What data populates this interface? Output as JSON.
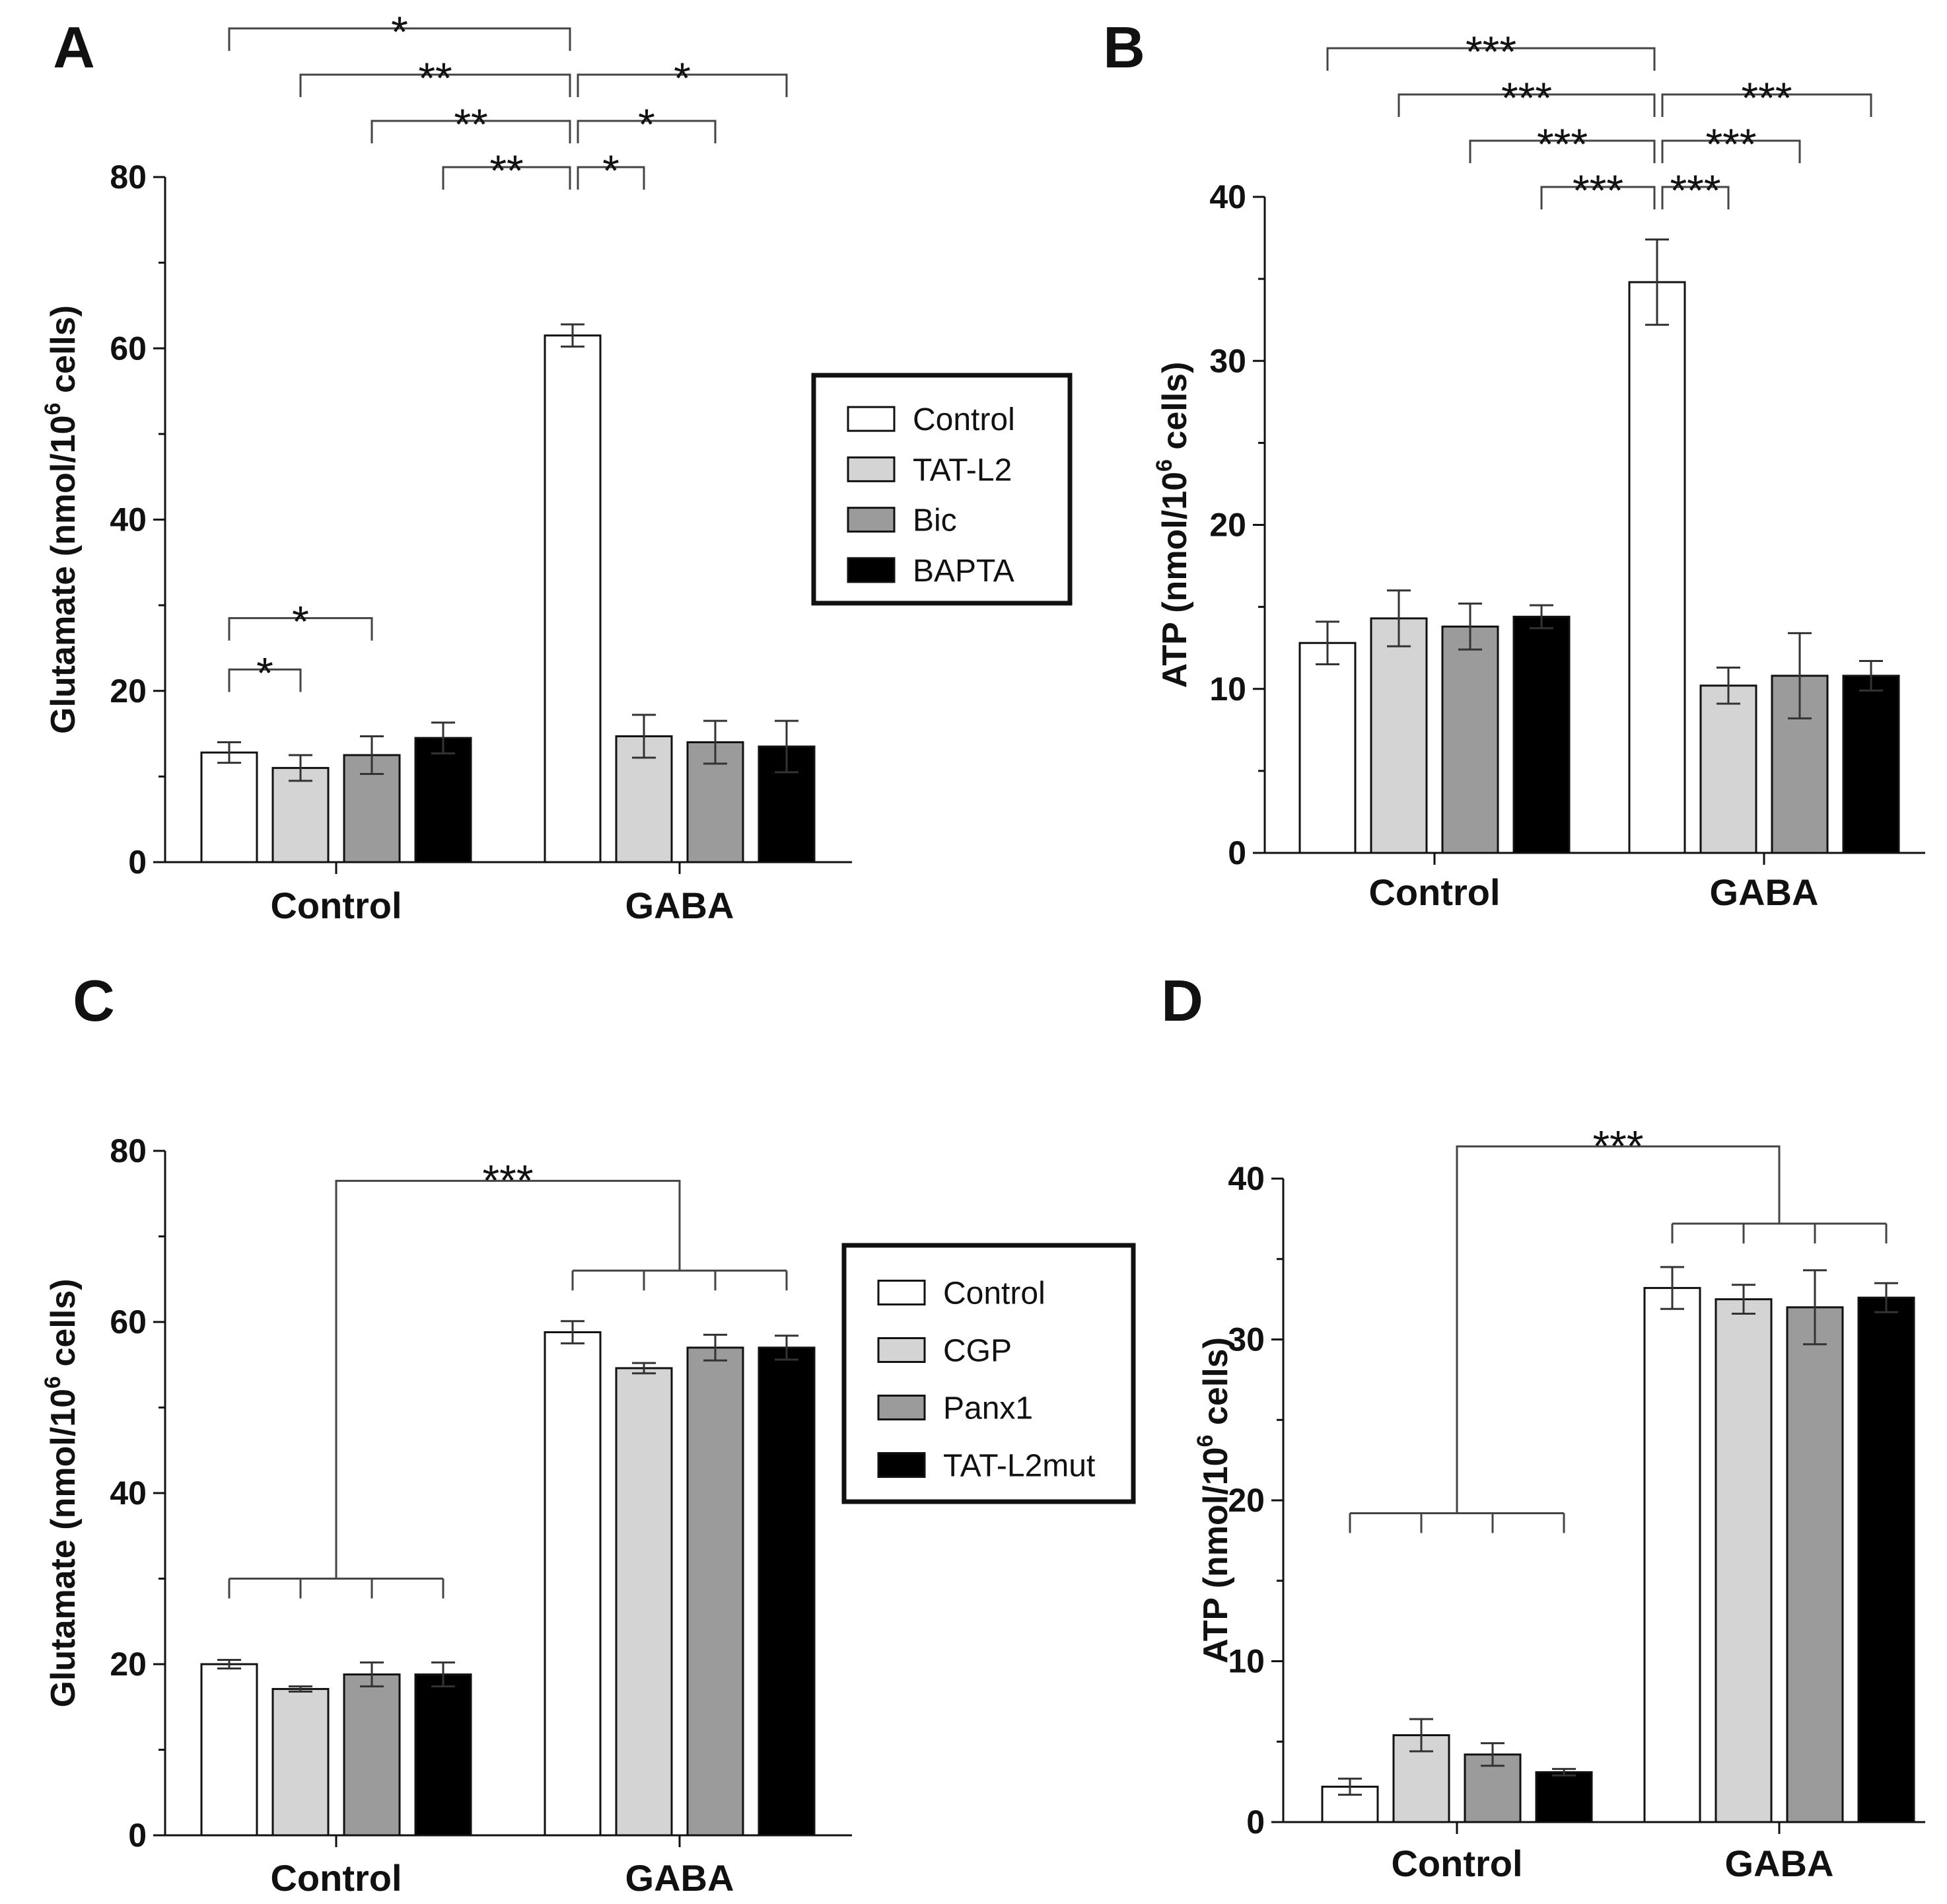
{
  "chart_data": [
    {
      "panel": "A",
      "type": "bar",
      "ylabel": "Glutamate (nmol/10",
      "ylabel_exponent": "6",
      "ylabel_suffix": " cells)",
      "ylim": [
        0,
        80
      ],
      "yticks": [
        0,
        20,
        40,
        60,
        80
      ],
      "categories": [
        "Control",
        "GABA"
      ],
      "series": [
        {
          "name": "Control",
          "values": [
            12.8,
            61.5
          ],
          "errors": [
            1.2,
            1.3
          ],
          "color": "#ffffff"
        },
        {
          "name": "TAT-L2",
          "values": [
            11.0,
            14.7
          ],
          "errors": [
            1.5,
            2.5
          ],
          "color": "#d4d4d4"
        },
        {
          "name": "Bic",
          "values": [
            12.5,
            14.0
          ],
          "errors": [
            2.2,
            2.5
          ],
          "color": "#9b9b9b"
        },
        {
          "name": "BAPTA",
          "values": [
            14.5,
            13.5
          ],
          "errors": [
            1.8,
            3.0
          ],
          "color": "#000000"
        }
      ],
      "legend": {
        "entries": [
          "Control",
          "TAT-L2",
          "Bic",
          "BAPTA"
        ],
        "placement": "right"
      },
      "significance": [
        {
          "from": [
            0,
            0
          ],
          "to": [
            1,
            0
          ],
          "label": "*",
          "level": 5,
          "type": "bar"
        },
        {
          "from": [
            0,
            1
          ],
          "to": [
            1,
            0
          ],
          "label": "**",
          "level": 4,
          "type": "bar"
        },
        {
          "from": [
            0,
            2
          ],
          "to": [
            1,
            0
          ],
          "label": "**",
          "level": 3,
          "type": "bar"
        },
        {
          "from": [
            0,
            3
          ],
          "to": [
            1,
            0
          ],
          "label": "**",
          "level": 2,
          "type": "bar"
        },
        {
          "from": [
            1,
            0
          ],
          "to": [
            1,
            3
          ],
          "label": "*",
          "level": 4,
          "type": "bar"
        },
        {
          "from": [
            1,
            0
          ],
          "to": [
            1,
            2
          ],
          "label": "*",
          "level": 3,
          "type": "bar"
        },
        {
          "from": [
            1,
            0
          ],
          "to": [
            1,
            1
          ],
          "label": "*",
          "level": 2,
          "type": "bar"
        },
        {
          "from": [
            0,
            0
          ],
          "to": [
            0,
            2
          ],
          "label": "*",
          "value": 28.5,
          "type": "value"
        },
        {
          "from": [
            0,
            0
          ],
          "to": [
            0,
            1
          ],
          "label": "*",
          "value": 22.5,
          "type": "value"
        }
      ]
    },
    {
      "panel": "B",
      "type": "bar",
      "ylabel": "ATP (nmol/10",
      "ylabel_exponent": "6",
      "ylabel_suffix": " cells)",
      "ylim": [
        0,
        40
      ],
      "yticks": [
        0,
        10,
        20,
        30,
        40
      ],
      "categories": [
        "Control",
        "GABA"
      ],
      "series": [
        {
          "name": "Control",
          "values": [
            12.8,
            34.8
          ],
          "errors": [
            1.3,
            2.6
          ],
          "color": "#ffffff"
        },
        {
          "name": "TAT-L2",
          "values": [
            14.3,
            10.2
          ],
          "errors": [
            1.7,
            1.1
          ],
          "color": "#d4d4d4"
        },
        {
          "name": "Bic",
          "values": [
            13.8,
            10.8
          ],
          "errors": [
            1.4,
            2.6
          ],
          "color": "#9b9b9b"
        },
        {
          "name": "BAPTA",
          "values": [
            14.4,
            10.8
          ],
          "errors": [
            0.7,
            0.9
          ],
          "color": "#000000"
        }
      ],
      "significance": [
        {
          "from": [
            0,
            0
          ],
          "to": [
            1,
            0
          ],
          "label": "***",
          "level": 5,
          "type": "bar"
        },
        {
          "from": [
            0,
            1
          ],
          "to": [
            1,
            0
          ],
          "label": "***",
          "level": 4,
          "type": "bar"
        },
        {
          "from": [
            0,
            2
          ],
          "to": [
            1,
            0
          ],
          "label": "***",
          "level": 3,
          "type": "bar"
        },
        {
          "from": [
            0,
            3
          ],
          "to": [
            1,
            0
          ],
          "label": "***",
          "level": 2,
          "type": "bar"
        },
        {
          "from": [
            1,
            0
          ],
          "to": [
            1,
            3
          ],
          "label": "***",
          "level": 4,
          "type": "bar"
        },
        {
          "from": [
            1,
            0
          ],
          "to": [
            1,
            2
          ],
          "label": "***",
          "level": 3,
          "type": "bar"
        },
        {
          "from": [
            1,
            0
          ],
          "to": [
            1,
            1
          ],
          "label": "***",
          "level": 2,
          "type": "bar"
        }
      ]
    },
    {
      "panel": "C",
      "type": "bar",
      "ylabel": "Glutamate (nmol/10",
      "ylabel_exponent": "6",
      "ylabel_suffix": " cells)",
      "ylim": [
        0,
        80
      ],
      "yticks": [
        0,
        20,
        40,
        60,
        80
      ],
      "categories": [
        "Control",
        "GABA"
      ],
      "series": [
        {
          "name": "Control",
          "values": [
            20.0,
            58.8
          ],
          "errors": [
            0.5,
            1.3
          ],
          "color": "#ffffff"
        },
        {
          "name": "CGP",
          "values": [
            17.1,
            54.6
          ],
          "errors": [
            0.3,
            0.6
          ],
          "color": "#d4d4d4"
        },
        {
          "name": "Panx1",
          "values": [
            18.8,
            57.0
          ],
          "errors": [
            1.4,
            1.5
          ],
          "color": "#9b9b9b"
        },
        {
          "name": "TAT-L2mut",
          "values": [
            18.8,
            57.0
          ],
          "errors": [
            1.4,
            1.4
          ],
          "color": "#000000"
        }
      ],
      "legend": {
        "entries": [
          "Control",
          "CGP",
          "Panx1",
          "TAT-L2mut"
        ],
        "placement": "right"
      },
      "group_comparison": {
        "label": "***",
        "control_level": 30,
        "gaba_level": 66,
        "top_level": 76.5
      }
    },
    {
      "panel": "D",
      "type": "bar",
      "ylabel": "ATP (nmol/10",
      "ylabel_exponent": "6",
      "ylabel_suffix": " cells)",
      "ylim": [
        0,
        40
      ],
      "yticks": [
        0,
        10,
        20,
        30,
        40
      ],
      "categories": [
        "Control",
        "GABA"
      ],
      "series": [
        {
          "name": "Control",
          "values": [
            2.2,
            33.2
          ],
          "errors": [
            0.5,
            1.3
          ],
          "color": "#ffffff"
        },
        {
          "name": "CGP",
          "values": [
            5.4,
            32.5
          ],
          "errors": [
            1.0,
            0.9
          ],
          "color": "#d4d4d4"
        },
        {
          "name": "Panx1",
          "values": [
            4.2,
            32.0
          ],
          "errors": [
            0.7,
            2.3
          ],
          "color": "#9b9b9b"
        },
        {
          "name": "TAT-L2mut",
          "values": [
            3.1,
            32.6
          ],
          "errors": [
            0.2,
            0.9
          ],
          "color": "#000000"
        }
      ],
      "group_comparison": {
        "label": "***",
        "control_level": 19.2,
        "gaba_level": 37.2,
        "top_level": 42
      }
    }
  ]
}
